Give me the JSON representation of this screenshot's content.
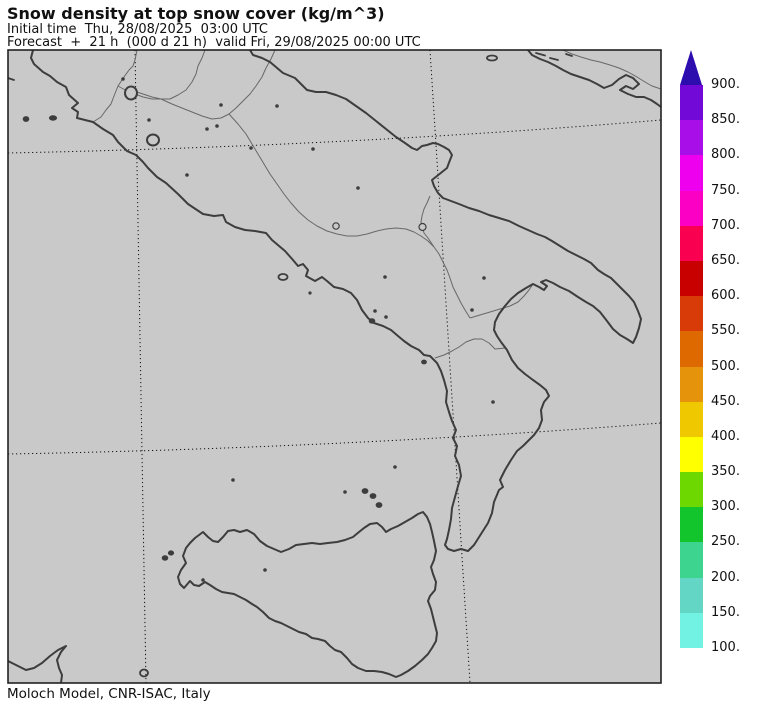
{
  "header": {
    "title": "Snow density at top snow cover (kg/m^3)",
    "initial_time_line": "Initial time  Thu, 28/08/2025  03:00 UTC",
    "forecast_line": "Forecast  +  21 h  (000 d 21 h)  valid Fri, 29/08/2025 00:00 UTC"
  },
  "footer": {
    "credit": "Moloch Model, CNR-ISAC, Italy"
  },
  "map": {
    "region": "Southern Italy",
    "background_color": "#c9c9c9",
    "coastline_color": "#3d3d3d",
    "border_color": "#686868",
    "gridline_style": "dotted"
  },
  "colorbar": {
    "unit": "kg/m^3",
    "arrow_color": "#2e0daf",
    "labels_top_to_bottom": [
      "900.",
      "850.",
      "800.",
      "750.",
      "700.",
      "650.",
      "600.",
      "550.",
      "500.",
      "450.",
      "400.",
      "350.",
      "300.",
      "250.",
      "200.",
      "150.",
      "100."
    ],
    "segment_colors_top_to_bottom": [
      "#7209d6",
      "#a80fe8",
      "#ee00ee",
      "#fb00c4",
      "#fa0050",
      "#c80000",
      "#d83a08",
      "#dd6900",
      "#e5930a",
      "#f0c800",
      "#ffff00",
      "#6cd800",
      "#12c52c",
      "#3cd48e",
      "#63d6c6",
      "#72f2e2"
    ],
    "scale": {
      "min": 100,
      "max": 900,
      "step": 50,
      "values": [
        100,
        150,
        200,
        250,
        300,
        350,
        400,
        450,
        500,
        550,
        600,
        650,
        700,
        750,
        800,
        850,
        900
      ]
    }
  }
}
